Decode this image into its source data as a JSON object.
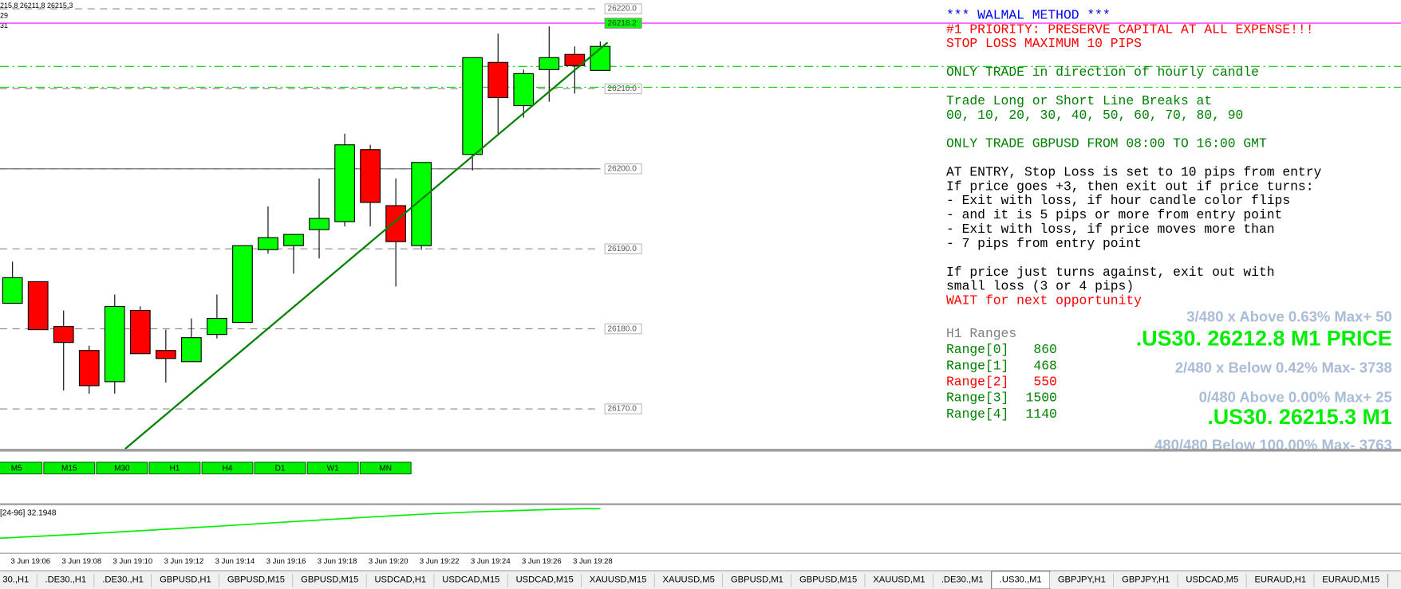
{
  "ohlc_readout": [
    "215,8 26211,8 26215,3",
    "29",
    "31"
  ],
  "chart_data": {
    "type": "candlestick",
    "categories": [
      "3 Jun 19:06",
      null,
      "3 Jun 19:08",
      null,
      "3 Jun 19:10",
      null,
      "3 Jun 19:12",
      null,
      "3 Jun 19:14",
      null,
      "3 Jun 19:16",
      null,
      "3 Jun 19:18",
      null,
      "3 Jun 19:20",
      null,
      "3 Jun 19:22",
      null,
      "3 Jun 19:24",
      null,
      "3 Jun 19:26",
      null,
      "3 Jun 19:28",
      null
    ],
    "open": [
      26183.2,
      26185.9,
      26180.3,
      26177.3,
      26173.4,
      26182.3,
      26177.3,
      26175.9,
      26179.3,
      26180.8,
      26189.9,
      26190.4,
      26192.4,
      26193.4,
      26202.4,
      26195.4,
      26190.4,
      null,
      26201.8,
      26213.3,
      26207.9,
      26212.4,
      26214.3,
      26212.3
    ],
    "high": [
      26188.4,
      26185.9,
      26182.3,
      26177.9,
      26184.3,
      26182.8,
      26179.9,
      26181.3,
      26184.3,
      26190.4,
      26195.3,
      26191.8,
      26198.8,
      26204.4,
      26203.0,
      26198.8,
      26200.8,
      null,
      26213.9,
      26216.9,
      26212.4,
      26217.8,
      26215.3,
      26215.9
    ],
    "low": [
      26183.2,
      26179.9,
      26172.3,
      26171.9,
      26171.9,
      26176.9,
      26173.3,
      26175.9,
      26178.8,
      26180.8,
      26189.4,
      26186.9,
      26188.8,
      26192.8,
      26192.8,
      26185.3,
      26189.9,
      null,
      26199.8,
      26204.4,
      26206.4,
      26208.4,
      26209.4,
      26212.3
    ],
    "close": [
      26186.4,
      26179.9,
      26178.3,
      26172.9,
      26182.8,
      26176.9,
      26176.3,
      26178.9,
      26181.3,
      26190.4,
      26191.4,
      26191.8,
      26193.8,
      26203.0,
      26195.8,
      26190.9,
      26200.8,
      null,
      26213.9,
      26208.9,
      26211.9,
      26213.9,
      26212.9,
      26215.3
    ],
    "up_color": "#00ff00",
    "down_color": "#ff0000",
    "ylim": [
      26165.0,
      26221.1
    ],
    "yticks": [
      {
        "value": 26220,
        "label": "26220.0"
      },
      {
        "value": 26210,
        "label": "26210.0"
      },
      {
        "value": 26200,
        "label": "26200.0"
      },
      {
        "value": 26190,
        "label": "26190.0"
      },
      {
        "value": 26180,
        "label": "26180.0"
      },
      {
        "value": 26170,
        "label": "26170.0"
      }
    ],
    "price_marker": {
      "value": 26218.2,
      "label": "26218.2",
      "color": "#00ff00"
    },
    "hlines": [
      {
        "value": 26218.2,
        "color": "#ff00ff",
        "style": "solid"
      },
      {
        "value": 26212.8,
        "color": "#00cc00",
        "style": "dashdot"
      },
      {
        "value": 26210.2,
        "color": "#00cc00",
        "style": "dashdot"
      },
      {
        "value": 26200,
        "color": "#606060",
        "style": "solid"
      }
    ],
    "trendline": {
      "values": [
        26165.0,
        26215.8
      ],
      "color": "#008000"
    },
    "grid": true
  },
  "notes": [
    [
      {
        "text": "*** WALMAL METHOD ***",
        "color": "#0000ff"
      },
      {
        "text": "#1 PRIORITY: PRESERVE CAPITAL AT ALL EXPENSE!!!",
        "color": "#ff0000"
      },
      {
        "text": "STOP LOSS MAXIMUM 10 PIPS",
        "color": "#ff0000"
      }
    ],
    [
      {
        "text": "ONLY TRADE in direction of hourly candle",
        "color": "#008000"
      }
    ],
    [
      {
        "text": "Trade Long or Short Line Breaks at",
        "color": "#008000"
      },
      {
        "text": "00, 10, 20, 30, 40, 50, 60, 70, 80, 90",
        "color": "#008000"
      }
    ],
    [
      {
        "text": "ONLY TRADE GBPUSD FROM 08:00 TO 16:00 GMT",
        "color": "#008000"
      }
    ],
    [
      {
        "text": "AT ENTRY, Stop Loss is set to 10 pips from entry",
        "color": "#000000"
      },
      {
        "text": "If price goes +3, then exit out if price turns:",
        "color": "#000000"
      },
      {
        "text": "- Exit with loss, if hour candle color flips",
        "color": "#000000"
      },
      {
        "text": "- and it is 5 pips or more from entry point",
        "color": "#000000"
      },
      {
        "text": "- Exit with loss, if price moves more than",
        "color": "#000000"
      },
      {
        "text": "- 7 pips from entry point",
        "color": "#000000"
      }
    ],
    [
      {
        "text": "If price just turns against, exit out with",
        "color": "#000000"
      },
      {
        "text": "small loss (3 or 4 pips)",
        "color": "#000000"
      },
      {
        "text": "WAIT for next opportunity",
        "color": "#ff0000"
      }
    ]
  ],
  "ranges": {
    "title": "H1 Ranges",
    "rows": [
      {
        "label": "Range[0]",
        "value": 860,
        "color": "#008000"
      },
      {
        "label": "Range[1]",
        "value": 468,
        "color": "#008000"
      },
      {
        "label": "Range[2]",
        "value": 550,
        "color": "#ff0000"
      },
      {
        "label": "Range[3]",
        "value": 1500,
        "color": "#008000"
      },
      {
        "label": "Range[4]",
        "value": 1140,
        "color": "#008000"
      }
    ]
  },
  "stats": [
    {
      "text": "3/480 x Above 0.63% Max+ 50",
      "color": "#a9bcd6",
      "size": "small"
    },
    {
      "text": ".US30. 26212.8 M1 PRICE",
      "color": "#00ee00",
      "size": "large"
    },
    {
      "text": "2/480 x Below 0.42% Max- 3738",
      "color": "#a9bcd6",
      "size": "small"
    },
    {
      "text": "0/480 Above 0.00% Max+ 25",
      "color": "#a9bcd6",
      "size": "small"
    },
    {
      "text": ".US30. 26215.3 M1",
      "color": "#00ee00",
      "size": "large"
    },
    {
      "text": "480/480 Below 100.00% Max- 3763",
      "color": "#a9bcd6",
      "size": "small"
    }
  ],
  "timeframes": [
    "M5",
    "M15",
    "M30",
    "H1",
    "H4",
    "D1",
    "W1",
    "MN"
  ],
  "indicator_label": "[24-96] 32.1948",
  "tabs": [
    "30.,H1",
    ".DE30.,H1",
    ".DE30.,H1",
    "GBPUSD,H1",
    "GBPUSD,M15",
    "GBPUSD,M15",
    "USDCAD,H1",
    "USDCAD,M15",
    "USDCAD,M15",
    "XAUUSD,M15",
    "XAUUSD,M5",
    "GBPUSD,M1",
    "GBPUSD,M15",
    "XAUUSD,M1",
    ".DE30.,M1",
    ".US30.,M1",
    "GBPJPY,H1",
    "GBPJPY,H1",
    "USDCAD,M5",
    "EURAUD,H1",
    "EURAUD,M15"
  ],
  "active_tab": ".US30.,M1"
}
